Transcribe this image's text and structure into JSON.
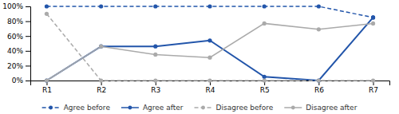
{
  "chart_data": {
    "type": "line",
    "categories": [
      "R1",
      "R2",
      "R3",
      "R4",
      "R5",
      "R6",
      "R7"
    ],
    "series": [
      {
        "name": "Agree before",
        "color": "#2255AA",
        "line_style": "dashed",
        "marker": "circle",
        "values": [
          100,
          100,
          100,
          100,
          100,
          100,
          85
        ]
      },
      {
        "name": "Agree after",
        "color": "#2255AA",
        "line_style": "solid",
        "marker": "circle",
        "values": [
          0,
          46,
          46,
          54,
          5,
          0,
          85
        ]
      },
      {
        "name": "Disagree before",
        "color": "#AAAAAA",
        "line_style": "dashed",
        "marker": "circle",
        "values": [
          90,
          0,
          0,
          0,
          0,
          0,
          0
        ]
      },
      {
        "name": "Disagree after",
        "color": "#AAAAAA",
        "line_style": "solid",
        "marker": "circle",
        "values": [
          0,
          46,
          35,
          31,
          77,
          69,
          77
        ]
      }
    ],
    "ylim": [
      0,
      100
    ],
    "yticks": [
      {
        "value": 0,
        "label": "0%"
      },
      {
        "value": 20,
        "label": "20%"
      },
      {
        "value": 40,
        "label": "40%"
      },
      {
        "value": 60,
        "label": "60%"
      },
      {
        "value": 80,
        "label": "80%"
      },
      {
        "value": 100,
        "label": "100%"
      }
    ],
    "grid": false,
    "legend": "bottom"
  }
}
